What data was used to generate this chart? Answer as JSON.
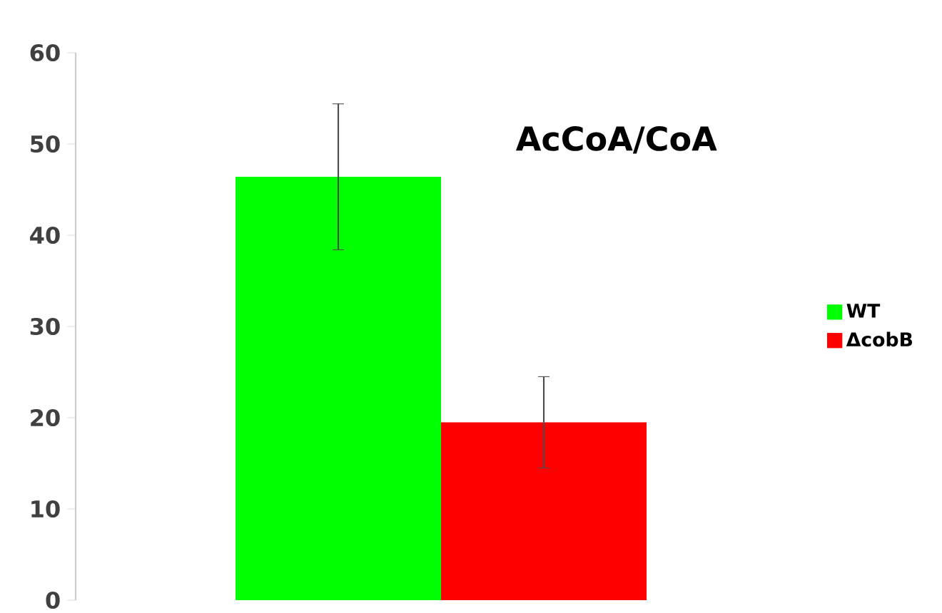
{
  "chart_data": {
    "type": "bar",
    "title": "AcCoA/CoA",
    "categories": [
      null
    ],
    "series": [
      {
        "name": "WT",
        "color": "#00ff00",
        "values": [
          46.4
        ],
        "errors": [
          8
        ]
      },
      {
        "name": "ΔcobB",
        "color": "#ff0000",
        "values": [
          19.5
        ],
        "errors": [
          5
        ]
      }
    ],
    "ylim": [
      0,
      60
    ],
    "yticks": [
      0,
      10,
      20,
      30,
      40,
      50,
      60
    ],
    "legend": "right"
  }
}
